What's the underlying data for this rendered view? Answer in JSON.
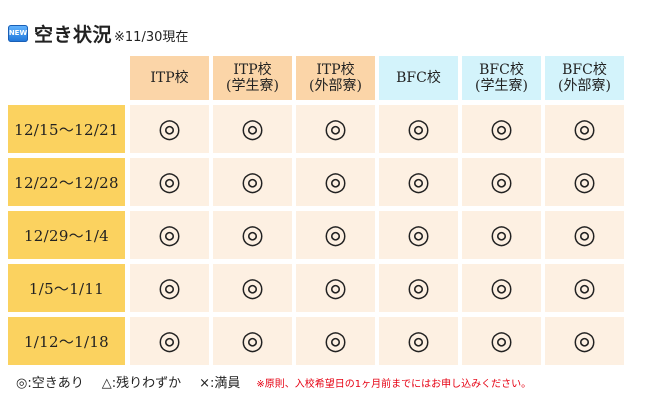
{
  "header": {
    "badge": "NEW",
    "title": "空き状況",
    "asof": "※11/30現在"
  },
  "columns": [
    {
      "line1": "ITP校",
      "line2": ""
    },
    {
      "line1": "ITP校",
      "line2": "(学生寮)"
    },
    {
      "line1": "ITP校",
      "line2": "(外部寮)"
    },
    {
      "line1": "BFC校",
      "line2": ""
    },
    {
      "line1": "BFC校",
      "line2": "(学生寮)"
    },
    {
      "line1": "BFC校",
      "line2": "(外部寮)"
    }
  ],
  "rows": [
    {
      "label": "12/15～12/21",
      "cells": [
        "◎",
        "◎",
        "◎",
        "◎",
        "◎",
        "◎"
      ]
    },
    {
      "label": "12/22～12/28",
      "cells": [
        "◎",
        "◎",
        "◎",
        "◎",
        "◎",
        "◎"
      ]
    },
    {
      "label": "12/29～1/4",
      "cells": [
        "◎",
        "◎",
        "◎",
        "◎",
        "◎",
        "◎"
      ]
    },
    {
      "label": "1/5～1/11",
      "cells": [
        "◎",
        "◎",
        "◎",
        "◎",
        "◎",
        "◎"
      ]
    },
    {
      "label": "1/12～1/18",
      "cells": [
        "◎",
        "◎",
        "◎",
        "◎",
        "◎",
        "◎"
      ]
    }
  ],
  "legend": [
    "◎:空きあり",
    "△:残りわずか",
    "×:満員"
  ],
  "note": "※原則、入校希望日の1ヶ月前までにはお申し込みください。",
  "colors": {
    "itp_header": "#fbd5a8",
    "bfc_header": "#d3f3fb",
    "row_header": "#fbd25f",
    "cell": "#fdf0e2",
    "note": "#e60012"
  }
}
